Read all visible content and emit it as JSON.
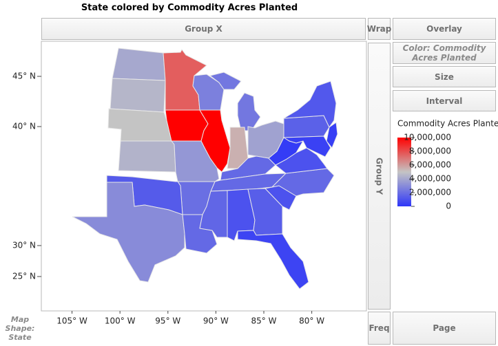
{
  "chart_data": {
    "type": "map",
    "title": "State colored by Commodity Acres Planted",
    "legend_title": "Commodity Acres Planted",
    "values": [
      4000000,
      4500000,
      5000000,
      4400000,
      7600000,
      10000000,
      2600000,
      10000000,
      3400000,
      2300000,
      2300000,
      5500000,
      3800000,
      1800000,
      1800000,
      2000000,
      1300000,
      3000000,
      1800000,
      1700000,
      1000000,
      1400000,
      500000,
      1000000,
      1800000,
      1000000,
      200000,
      1500000,
      1200000,
      300000,
      400000
    ],
    "xlim": [
      -108.2,
      -74.3
    ],
    "xticks": [
      {
        "value": -105,
        "label": "105° W"
      },
      {
        "value": -100,
        "label": "100° W"
      },
      {
        "value": -95,
        "label": "95° W"
      },
      {
        "value": -90,
        "label": "90° W"
      },
      {
        "value": -85,
        "label": "85° W"
      },
      {
        "value": -80,
        "label": "80° W"
      }
    ],
    "ylim": [
      19.4,
      48.5
    ],
    "yticks": [
      {
        "value": 25,
        "label": "25° N"
      },
      {
        "value": 30,
        "label": "30° N"
      },
      {
        "value": 40,
        "label": "40° N"
      },
      {
        "value": 45,
        "label": "45° N"
      }
    ],
    "clim": [
      0,
      10000000
    ],
    "cticks": [
      0,
      {
        "value": 2000000,
        "label": "2,000,000"
      },
      {
        "value": 4000000,
        "label": "4,000,000"
      },
      {
        "value": 6000000,
        "label": "6,000,000"
      },
      {
        "value": 8000000,
        "label": "8,000,000"
      },
      {
        "value": 10000000,
        "label": "10,000,000"
      }
    ],
    "color_scale": [
      "#2e36f8",
      "#c4c4c4",
      "#ff0000"
    ]
  },
  "drop_zones": {
    "group_x": "Group X",
    "wrap": "Wrap",
    "overlay": "Overlay",
    "color": "Color: Commodity Acres Planted",
    "size": "Size",
    "interval": "Interval",
    "group_y": "Group Y",
    "map_shape": "Map Shape: State",
    "freq": "Freq",
    "page": "Page"
  }
}
